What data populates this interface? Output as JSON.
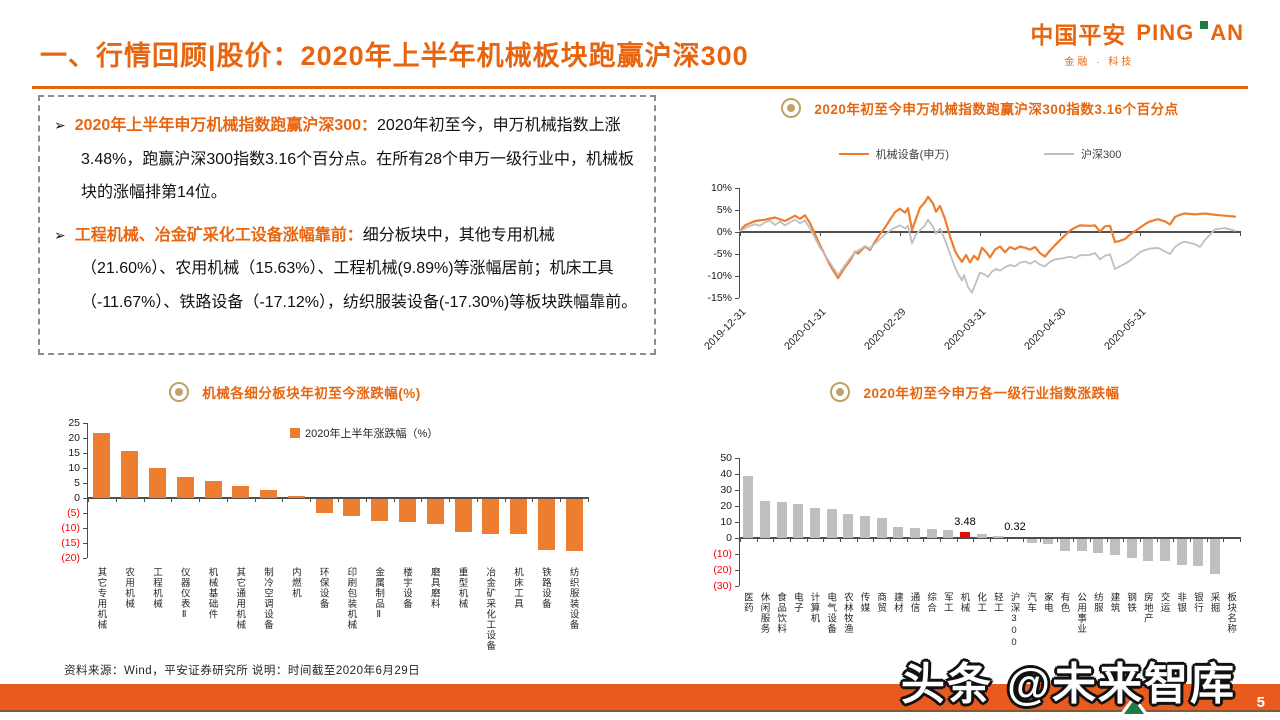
{
  "slide": {
    "title_prefix": "一、行情回顾|股价：",
    "title_main": "2020年上半年机械板块跑赢沪深300",
    "bullet_marker": "➢",
    "footer_source": "资料来源：Wind，平安证券研究所 说明：时间截至2020年6月29日",
    "watermark": "头条 @未来智库",
    "page_number": "5"
  },
  "logo": {
    "cn": "中国平安",
    "en_first": "PING",
    "en_second": "AN",
    "tagline": "金融 · 科技"
  },
  "bullets": [
    {
      "lead": "2020年上半年申万机械指数跑赢沪深300：",
      "body": "2020年初至今，申万机械指数上涨3.48%，跑赢沪深300指数3.16个百分点。在所有28个申万一级行业中，机械板块的涨幅排第14位。"
    },
    {
      "lead": "工程机械、冶金矿采化工设备涨幅靠前：",
      "body": "细分板块中，其他专用机械（21.60%）、农用机械（15.63%）、工程机械(9.89%)等涨幅居前；机床工具（-11.67%）、铁路设备（-17.12%），纺织服装设备(-17.30%)等板块跌幅靠前。"
    }
  ],
  "colors": {
    "orange": "#E8650F",
    "bar_orange": "#ED7D31",
    "line_orange": "#ED7D31",
    "gray": "#BFBFBF",
    "red": "#E01000",
    "neg_tick": "#FF0000",
    "gold": "#C0A268",
    "footer_bar": "#E95A1F"
  },
  "chart_data": [
    {
      "id": "line",
      "type": "line",
      "title": "2020年初至今申万机械指数跑赢沪深300指数3.16个百分点",
      "ylim": [
        -15,
        10
      ],
      "y_ticks": [
        {
          "label": "10%",
          "v": 10
        },
        {
          "label": "5%",
          "v": 5
        },
        {
          "label": "0%",
          "v": 0
        },
        {
          "label": "-5%",
          "v": -5
        },
        {
          "label": "-10%",
          "v": -10
        },
        {
          "label": "-15%",
          "v": -15
        }
      ],
      "x_ticks": [
        "2019-12-31",
        "2020-01-31",
        "2020-02-29",
        "2020-03-31",
        "2020-04-30",
        "2020-05-31"
      ],
      "legend_position": "top-center",
      "grid": false,
      "series": [
        {
          "name": "机械设备(申万)",
          "color": "#ED7D31",
          "points": [
            [
              0,
              0.3
            ],
            [
              0.01,
              1.5
            ],
            [
              0.03,
              2.5
            ],
            [
              0.05,
              2.8
            ],
            [
              0.07,
              3.3
            ],
            [
              0.09,
              2.5
            ],
            [
              0.11,
              3.7
            ],
            [
              0.12,
              3
            ],
            [
              0.13,
              3.8
            ],
            [
              0.14,
              2
            ],
            [
              0.16,
              -3
            ],
            [
              0.18,
              -7.5
            ],
            [
              0.196,
              -10.5
            ],
            [
              0.21,
              -8
            ],
            [
              0.22,
              -6.5
            ],
            [
              0.23,
              -4.5
            ],
            [
              0.236,
              -4.9
            ],
            [
              0.25,
              -3.3
            ],
            [
              0.26,
              -4.1
            ],
            [
              0.27,
              -2.2
            ],
            [
              0.28,
              -0.5
            ],
            [
              0.29,
              1
            ],
            [
              0.3,
              2.8
            ],
            [
              0.31,
              4.5
            ],
            [
              0.32,
              5.3
            ],
            [
              0.33,
              4.4
            ],
            [
              0.336,
              5.4
            ],
            [
              0.344,
              0.4
            ],
            [
              0.352,
              3
            ],
            [
              0.36,
              5.5
            ],
            [
              0.37,
              6.8
            ],
            [
              0.376,
              8
            ],
            [
              0.386,
              6.5
            ],
            [
              0.392,
              4.6
            ],
            [
              0.4,
              5.9
            ],
            [
              0.41,
              3
            ],
            [
              0.42,
              -1
            ],
            [
              0.43,
              -4.3
            ],
            [
              0.436,
              -5.5
            ],
            [
              0.444,
              -6.8
            ],
            [
              0.452,
              -5.2
            ],
            [
              0.46,
              -6.9
            ],
            [
              0.468,
              -5.4
            ],
            [
              0.476,
              -6.3
            ],
            [
              0.484,
              -3.6
            ],
            [
              0.492,
              -4.5
            ],
            [
              0.5,
              -5.8
            ],
            [
              0.51,
              -4
            ],
            [
              0.52,
              -3.3
            ],
            [
              0.53,
              -4.6
            ],
            [
              0.54,
              -3.4
            ],
            [
              0.55,
              -3.9
            ],
            [
              0.56,
              -3.3
            ],
            [
              0.57,
              -3.6
            ],
            [
              0.58,
              -4
            ],
            [
              0.59,
              -3.4
            ],
            [
              0.6,
              -4.8
            ],
            [
              0.61,
              -5.6
            ],
            [
              0.62,
              -4.2
            ],
            [
              0.63,
              -3
            ],
            [
              0.644,
              -1.4
            ],
            [
              0.66,
              0.3
            ],
            [
              0.67,
              1
            ],
            [
              0.68,
              1.5
            ],
            [
              0.7,
              1.4
            ],
            [
              0.71,
              1.5
            ],
            [
              0.72,
              0.1
            ],
            [
              0.73,
              1.3
            ],
            [
              0.74,
              1.4
            ],
            [
              0.75,
              -2.3
            ],
            [
              0.76,
              -2
            ],
            [
              0.77,
              -1.6
            ],
            [
              0.78,
              -0.6
            ],
            [
              0.79,
              0.2
            ],
            [
              0.8,
              1
            ],
            [
              0.81,
              1.8
            ],
            [
              0.82,
              2.4
            ],
            [
              0.836,
              2.9
            ],
            [
              0.85,
              2.4
            ],
            [
              0.86,
              1.7
            ],
            [
              0.87,
              3.4
            ],
            [
              0.88,
              3.9
            ],
            [
              0.89,
              4.2
            ],
            [
              0.91,
              4
            ],
            [
              0.93,
              4.2
            ],
            [
              0.95,
              3.9
            ],
            [
              0.97,
              3.7
            ],
            [
              0.99,
              3.5
            ]
          ]
        },
        {
          "name": "沪深300",
          "color": "#BFBFBF",
          "points": [
            [
              0,
              0.2
            ],
            [
              0.016,
              1.2
            ],
            [
              0.03,
              1.8
            ],
            [
              0.04,
              1.4
            ],
            [
              0.05,
              2.2
            ],
            [
              0.06,
              2.6
            ],
            [
              0.07,
              1.6
            ],
            [
              0.08,
              2.4
            ],
            [
              0.09,
              1.5
            ],
            [
              0.1,
              2.2
            ],
            [
              0.11,
              2.8
            ],
            [
              0.12,
              2
            ],
            [
              0.13,
              2.6
            ],
            [
              0.14,
              0.8
            ],
            [
              0.16,
              -3.5
            ],
            [
              0.18,
              -7
            ],
            [
              0.196,
              -9.8
            ],
            [
              0.21,
              -7.5
            ],
            [
              0.22,
              -6
            ],
            [
              0.23,
              -4.6
            ],
            [
              0.24,
              -4
            ],
            [
              0.25,
              -3.2
            ],
            [
              0.26,
              -3.8
            ],
            [
              0.27,
              -2.6
            ],
            [
              0.28,
              -1.6
            ],
            [
              0.29,
              -0.6
            ],
            [
              0.3,
              0.3
            ],
            [
              0.31,
              1
            ],
            [
              0.32,
              1.5
            ],
            [
              0.33,
              0.8
            ],
            [
              0.336,
              1.4
            ],
            [
              0.344,
              -2.6
            ],
            [
              0.352,
              -0.5
            ],
            [
              0.36,
              0.4
            ],
            [
              0.37,
              1.5
            ],
            [
              0.376,
              2.8
            ],
            [
              0.386,
              1.2
            ],
            [
              0.392,
              -0.4
            ],
            [
              0.4,
              0.8
            ],
            [
              0.41,
              -1.8
            ],
            [
              0.42,
              -5
            ],
            [
              0.43,
              -8
            ],
            [
              0.436,
              -9.5
            ],
            [
              0.444,
              -11
            ],
            [
              0.448,
              -9.8
            ],
            [
              0.456,
              -12.5
            ],
            [
              0.464,
              -13.8
            ],
            [
              0.472,
              -11.5
            ],
            [
              0.48,
              -9.2
            ],
            [
              0.488,
              -9.6
            ],
            [
              0.496,
              -10.2
            ],
            [
              0.504,
              -9
            ],
            [
              0.512,
              -8.4
            ],
            [
              0.52,
              -8.8
            ],
            [
              0.53,
              -8
            ],
            [
              0.54,
              -7.5
            ],
            [
              0.55,
              -7.8
            ],
            [
              0.56,
              -7
            ],
            [
              0.57,
              -6.7
            ],
            [
              0.58,
              -7.2
            ],
            [
              0.59,
              -6.6
            ],
            [
              0.6,
              -7.4
            ],
            [
              0.61,
              -7.8
            ],
            [
              0.62,
              -6.8
            ],
            [
              0.63,
              -6.2
            ],
            [
              0.644,
              -6
            ],
            [
              0.66,
              -5.6
            ],
            [
              0.67,
              -5.9
            ],
            [
              0.68,
              -5.3
            ],
            [
              0.7,
              -5.2
            ],
            [
              0.71,
              -4.8
            ],
            [
              0.72,
              -6.2
            ],
            [
              0.73,
              -5.4
            ],
            [
              0.74,
              -5.1
            ],
            [
              0.75,
              -8.4
            ],
            [
              0.76,
              -7.8
            ],
            [
              0.77,
              -7.2
            ],
            [
              0.78,
              -6.5
            ],
            [
              0.79,
              -5.6
            ],
            [
              0.8,
              -4.6
            ],
            [
              0.81,
              -4.1
            ],
            [
              0.82,
              -3.8
            ],
            [
              0.836,
              -3.6
            ],
            [
              0.85,
              -4.4
            ],
            [
              0.86,
              -5
            ],
            [
              0.87,
              -3.4
            ],
            [
              0.88,
              -2.6
            ],
            [
              0.89,
              -2.2
            ],
            [
              0.91,
              -2.8
            ],
            [
              0.92,
              -3.4
            ],
            [
              0.93,
              -1.8
            ],
            [
              0.94,
              -0.6
            ],
            [
              0.95,
              0.6
            ],
            [
              0.97,
              0.9
            ],
            [
              0.99,
              0.3
            ]
          ]
        }
      ]
    },
    {
      "id": "barl",
      "type": "bar",
      "title": "机械各细分板块年初至今涨跌幅(%)",
      "legend_label": "2020年上半年涨跌幅（%）",
      "bar_color": "#ED7D31",
      "ylim": [
        -20,
        25
      ],
      "y_ticks": [
        {
          "label": "25",
          "v": 25
        },
        {
          "label": "20",
          "v": 20
        },
        {
          "label": "15",
          "v": 15
        },
        {
          "label": "10",
          "v": 10
        },
        {
          "label": "5",
          "v": 5
        },
        {
          "label": "0",
          "v": 0
        },
        {
          "label": "(5)",
          "v": -5,
          "neg": true
        },
        {
          "label": "(10)",
          "v": -10,
          "neg": true
        },
        {
          "label": "(15)",
          "v": -15,
          "neg": true
        },
        {
          "label": "(20)",
          "v": -20,
          "neg": true
        }
      ],
      "categories": [
        "其它专用机械",
        "农用机械",
        "工程机械",
        "仪器仪表Ⅱ",
        "机械基础件",
        "其它通用机械",
        "制冷空调设备",
        "内燃机",
        "环保设备",
        "印刷包装机械",
        "金属制品Ⅱ",
        "楼宇设备",
        "磨具磨料",
        "重型机械",
        "冶金矿采化工设备",
        "机床工具",
        "铁路设备",
        "纺织服装设备"
      ],
      "values": [
        21.6,
        15.63,
        9.89,
        7.0,
        5.6,
        3.9,
        2.7,
        0.6,
        -4.8,
        -5.8,
        -7.2,
        -7.7,
        -8.3,
        -10.9,
        -11.5,
        -11.67,
        -17.12,
        -17.3
      ]
    },
    {
      "id": "barr",
      "type": "bar",
      "title": "2020年初至今申万各一级行业指数涨跌幅",
      "bar_color": "#BFBFBF",
      "red_indices": [
        13,
        16
      ],
      "data_labels": [
        {
          "i": 13,
          "text": "3.48"
        },
        {
          "i": 16,
          "text": "0.32"
        }
      ],
      "ylim": [
        -30,
        50
      ],
      "y_ticks": [
        {
          "label": "50",
          "v": 50
        },
        {
          "label": "40",
          "v": 40
        },
        {
          "label": "30",
          "v": 30
        },
        {
          "label": "20",
          "v": 20
        },
        {
          "label": "10",
          "v": 10
        },
        {
          "label": "0",
          "v": 0
        },
        {
          "label": "(10)",
          "v": -10,
          "neg": true
        },
        {
          "label": "(20)",
          "v": -20,
          "neg": true
        },
        {
          "label": "(30)",
          "v": -30,
          "neg": true
        }
      ],
      "categories": [
        "医药",
        "休闲服务",
        "食品饮料",
        "电子",
        "计算机",
        "电气设备",
        "农林牧渔",
        "传媒",
        "商贸",
        "建材",
        "通信",
        "综合",
        "军工",
        "机械",
        "化工",
        "轻工",
        "沪深300",
        "汽车",
        "家电",
        "有色",
        "公用事业",
        "纺服",
        "建筑",
        "钢铁",
        "房地产",
        "交运",
        "非银",
        "银行",
        "采掘",
        "板块名称"
      ],
      "values": [
        39,
        23.3,
        22.8,
        21.4,
        18.9,
        18.1,
        14.8,
        13.8,
        12.8,
        6.6,
        6.2,
        5.6,
        4.7,
        3.48,
        2.5,
        1.0,
        0.32,
        -2.5,
        -3.0,
        -7.5,
        -7.2,
        -8.6,
        -10.0,
        -11.8,
        -13.8,
        -14.0,
        -16.5,
        -16.8,
        -21.8,
        null
      ]
    }
  ]
}
